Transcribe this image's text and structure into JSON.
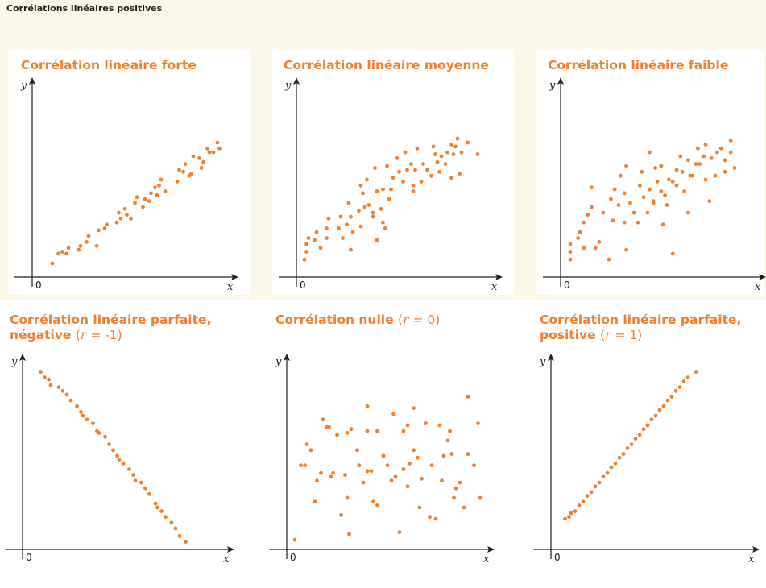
{
  "page": {
    "heading": "Corrélations linéaires positives"
  },
  "colors": {
    "accent": "#f07f2e",
    "axis": "#1d1d1b",
    "top_band": "#fbf8ea",
    "panel_background": "#ffffff"
  },
  "chart_data": [
    {
      "type": "scatter",
      "title": "Corrélation linéaire forte",
      "xlabel": "x",
      "ylabel": "y",
      "origin_label": "0",
      "xlim": [
        0,
        100
      ],
      "ylim": [
        0,
        100
      ],
      "grid": false,
      "points": [
        [
          10,
          7
        ],
        [
          13,
          12
        ],
        [
          15,
          13
        ],
        [
          17,
          12
        ],
        [
          18,
          15
        ],
        [
          23,
          14
        ],
        [
          24,
          16
        ],
        [
          27,
          18
        ],
        [
          28,
          21
        ],
        [
          32,
          16
        ],
        [
          33,
          24
        ],
        [
          36,
          25
        ],
        [
          37,
          27
        ],
        [
          42,
          28
        ],
        [
          43,
          33
        ],
        [
          44,
          30
        ],
        [
          46,
          35
        ],
        [
          47,
          32
        ],
        [
          49,
          30
        ],
        [
          51,
          38
        ],
        [
          52,
          41
        ],
        [
          55,
          36
        ],
        [
          56,
          40
        ],
        [
          58,
          39
        ],
        [
          59,
          43
        ],
        [
          61,
          46
        ],
        [
          62,
          42
        ],
        [
          63,
          47
        ],
        [
          64,
          50
        ],
        [
          66,
          44
        ],
        [
          72,
          49
        ],
        [
          73,
          55
        ],
        [
          75,
          54
        ],
        [
          76,
          58
        ],
        [
          78,
          52
        ],
        [
          79,
          53
        ],
        [
          80,
          62
        ],
        [
          83,
          61
        ],
        [
          84,
          56
        ],
        [
          85,
          59
        ],
        [
          87,
          66
        ],
        [
          88,
          64
        ],
        [
          90,
          64
        ],
        [
          92,
          69
        ],
        [
          93,
          66
        ]
      ]
    },
    {
      "type": "scatter",
      "title": "Corrélation linéaire moyenne",
      "xlabel": "x",
      "ylabel": "y",
      "origin_label": "0",
      "xlim": [
        0,
        100
      ],
      "ylim": [
        0,
        100
      ],
      "grid": false,
      "points": [
        [
          4,
          9
        ],
        [
          5,
          13
        ],
        [
          5,
          17
        ],
        [
          6,
          20
        ],
        [
          9,
          19
        ],
        [
          10,
          23
        ],
        [
          12,
          15
        ],
        [
          15,
          20
        ],
        [
          15,
          25
        ],
        [
          16,
          30
        ],
        [
          21,
          25
        ],
        [
          22,
          31
        ],
        [
          23,
          20
        ],
        [
          25,
          27
        ],
        [
          26,
          38
        ],
        [
          27,
          31
        ],
        [
          27,
          14
        ],
        [
          28,
          23
        ],
        [
          31,
          34
        ],
        [
          32,
          26
        ],
        [
          32,
          47
        ],
        [
          33,
          43
        ],
        [
          34,
          36
        ],
        [
          35,
          50
        ],
        [
          36,
          37
        ],
        [
          38,
          31
        ],
        [
          38,
          33
        ],
        [
          39,
          56
        ],
        [
          40,
          19
        ],
        [
          40,
          44
        ],
        [
          42,
          35
        ],
        [
          43,
          45
        ],
        [
          43,
          28
        ],
        [
          44,
          25
        ],
        [
          45,
          57
        ],
        [
          46,
          40
        ],
        [
          47,
          45
        ],
        [
          48,
          51
        ],
        [
          50,
          61
        ],
        [
          51,
          54
        ],
        [
          53,
          49
        ],
        [
          54,
          64
        ],
        [
          55,
          55
        ],
        [
          57,
          58
        ],
        [
          58,
          47
        ],
        [
          58,
          44
        ],
        [
          59,
          55
        ],
        [
          60,
          66
        ],
        [
          62,
          49
        ],
        [
          63,
          58
        ],
        [
          65,
          55
        ],
        [
          67,
          52
        ],
        [
          68,
          67
        ],
        [
          69,
          63
        ],
        [
          70,
          59
        ],
        [
          71,
          54
        ],
        [
          72,
          62
        ],
        [
          74,
          58
        ],
        [
          75,
          64
        ],
        [
          77,
          51
        ],
        [
          77,
          68
        ],
        [
          78,
          63
        ],
        [
          79,
          67
        ],
        [
          80,
          71
        ],
        [
          81,
          53
        ],
        [
          82,
          64
        ],
        [
          85,
          69
        ],
        [
          90,
          63
        ]
      ]
    },
    {
      "type": "scatter",
      "title": "Corrélation linéaire faible",
      "xlabel": "x",
      "ylabel": "y",
      "origin_label": "0",
      "xlim": [
        0,
        100
      ],
      "ylim": [
        0,
        100
      ],
      "grid": false,
      "points": [
        [
          5,
          13
        ],
        [
          5,
          9
        ],
        [
          5,
          17
        ],
        [
          9,
          20
        ],
        [
          10,
          23
        ],
        [
          12,
          28
        ],
        [
          12,
          15
        ],
        [
          14,
          32
        ],
        [
          16,
          36
        ],
        [
          16,
          46
        ],
        [
          18,
          15
        ],
        [
          20,
          18
        ],
        [
          22,
          33
        ],
        [
          25,
          9
        ],
        [
          26,
          40
        ],
        [
          27,
          29
        ],
        [
          28,
          45
        ],
        [
          30,
          37
        ],
        [
          31,
          52
        ],
        [
          33,
          28
        ],
        [
          33,
          43
        ],
        [
          34,
          14
        ],
        [
          34,
          57
        ],
        [
          36,
          38
        ],
        [
          38,
          33
        ],
        [
          40,
          28
        ],
        [
          41,
          47
        ],
        [
          42,
          54
        ],
        [
          43,
          41
        ],
        [
          45,
          33
        ],
        [
          46,
          45
        ],
        [
          46,
          64
        ],
        [
          48,
          38
        ],
        [
          48,
          39
        ],
        [
          49,
          56
        ],
        [
          50,
          49
        ],
        [
          52,
          44
        ],
        [
          52,
          57
        ],
        [
          53,
          27
        ],
        [
          54,
          42
        ],
        [
          55,
          37
        ],
        [
          56,
          50
        ],
        [
          58,
          12
        ],
        [
          58,
          49
        ],
        [
          60,
          55
        ],
        [
          60,
          47
        ],
        [
          62,
          62
        ],
        [
          63,
          54
        ],
        [
          64,
          44
        ],
        [
          66,
          60
        ],
        [
          66,
          33
        ],
        [
          67,
          52
        ],
        [
          68,
          52
        ],
        [
          70,
          58
        ],
        [
          71,
          66
        ],
        [
          72,
          58
        ],
        [
          74,
          62
        ],
        [
          75,
          68
        ],
        [
          75,
          50
        ],
        [
          77,
          39
        ],
        [
          78,
          61
        ],
        [
          80,
          52
        ],
        [
          81,
          64
        ],
        [
          83,
          66
        ],
        [
          85,
          60
        ],
        [
          85,
          54
        ],
        [
          88,
          70
        ],
        [
          88,
          64
        ],
        [
          90,
          56
        ]
      ]
    },
    {
      "type": "scatter",
      "title": "Corrélation linéaire parfaite,",
      "title_line2": "négative",
      "r_symbol": "r",
      "r_value": "= -1",
      "xlabel": "x",
      "ylabel": "y",
      "origin_label": "0",
      "xlim": [
        0,
        100
      ],
      "ylim": [
        0,
        100
      ],
      "grid": false,
      "points": [
        [
          9,
          93
        ],
        [
          11,
          90
        ],
        [
          13,
          89
        ],
        [
          14,
          86
        ],
        [
          18,
          85
        ],
        [
          20,
          83
        ],
        [
          22,
          81
        ],
        [
          24,
          78
        ],
        [
          27,
          75
        ],
        [
          29,
          72
        ],
        [
          30,
          70
        ],
        [
          32,
          68
        ],
        [
          35,
          66
        ],
        [
          37,
          62
        ],
        [
          38,
          61
        ],
        [
          41,
          59
        ],
        [
          43,
          55
        ],
        [
          45,
          52
        ],
        [
          47,
          49
        ],
        [
          48,
          47
        ],
        [
          50,
          45
        ],
        [
          53,
          42
        ],
        [
          55,
          39
        ],
        [
          56,
          36
        ],
        [
          59,
          35
        ],
        [
          61,
          32
        ],
        [
          63,
          29
        ],
        [
          66,
          24
        ],
        [
          67,
          22
        ],
        [
          69,
          20
        ],
        [
          71,
          17
        ],
        [
          74,
          14
        ],
        [
          76,
          11
        ],
        [
          78,
          7
        ],
        [
          81,
          4
        ]
      ]
    },
    {
      "type": "scatter",
      "title": "Corrélation nulle",
      "r_symbol": "r",
      "r_value": "= 0",
      "xlabel": "x",
      "ylabel": "y",
      "origin_label": "0",
      "xlim": [
        0,
        100
      ],
      "ylim": [
        0,
        100
      ],
      "grid": false,
      "points": [
        [
          4,
          5
        ],
        [
          7,
          44
        ],
        [
          9,
          44
        ],
        [
          10,
          55
        ],
        [
          12,
          52
        ],
        [
          14,
          25
        ],
        [
          15,
          36
        ],
        [
          17,
          40
        ],
        [
          18,
          68
        ],
        [
          20,
          64
        ],
        [
          21,
          64
        ],
        [
          22,
          38
        ],
        [
          23,
          40
        ],
        [
          25,
          60
        ],
        [
          27,
          18
        ],
        [
          29,
          39
        ],
        [
          30,
          27
        ],
        [
          30,
          61
        ],
        [
          31,
          8
        ],
        [
          32,
          63
        ],
        [
          35,
          52
        ],
        [
          36,
          44
        ],
        [
          38,
          35
        ],
        [
          40,
          41
        ],
        [
          40,
          62
        ],
        [
          40,
          75
        ],
        [
          42,
          41
        ],
        [
          43,
          25
        ],
        [
          45,
          23
        ],
        [
          45,
          62
        ],
        [
          48,
          49
        ],
        [
          50,
          44
        ],
        [
          52,
          36
        ],
        [
          53,
          71
        ],
        [
          54,
          38
        ],
        [
          56,
          9
        ],
        [
          58,
          42
        ],
        [
          58,
          62
        ],
        [
          60,
          33
        ],
        [
          60,
          65
        ],
        [
          61,
          45
        ],
        [
          63,
          52
        ],
        [
          63,
          74
        ],
        [
          65,
          48
        ],
        [
          66,
          22
        ],
        [
          67,
          37
        ],
        [
          69,
          66
        ],
        [
          71,
          17
        ],
        [
          72,
          44
        ],
        [
          74,
          16
        ],
        [
          76,
          65
        ],
        [
          77,
          36
        ],
        [
          78,
          49
        ],
        [
          80,
          57
        ],
        [
          81,
          62
        ],
        [
          82,
          50
        ],
        [
          83,
          27
        ],
        [
          84,
          32
        ],
        [
          86,
          35
        ],
        [
          88,
          22
        ],
        [
          90,
          80
        ],
        [
          90,
          50
        ],
        [
          93,
          44
        ],
        [
          95,
          66
        ],
        [
          96,
          27
        ]
      ]
    },
    {
      "type": "scatter",
      "title": "Corrélation linéaire parfaite,",
      "title_line2": "positive",
      "r_symbol": "r",
      "r_value": "= 1",
      "xlabel": "x",
      "ylabel": "y",
      "origin_label": "0",
      "xlim": [
        0,
        100
      ],
      "ylim": [
        0,
        100
      ],
      "grid": false,
      "points": [
        [
          7,
          16
        ],
        [
          9,
          17
        ],
        [
          10,
          19
        ],
        [
          12,
          20
        ],
        [
          14,
          23
        ],
        [
          16,
          25
        ],
        [
          18,
          28
        ],
        [
          20,
          30
        ],
        [
          22,
          33
        ],
        [
          24,
          35
        ],
        [
          26,
          38
        ],
        [
          28,
          40
        ],
        [
          30,
          43
        ],
        [
          32,
          45
        ],
        [
          34,
          48
        ],
        [
          36,
          50
        ],
        [
          38,
          53
        ],
        [
          40,
          55
        ],
        [
          42,
          58
        ],
        [
          44,
          60
        ],
        [
          46,
          63
        ],
        [
          48,
          65
        ],
        [
          50,
          68
        ],
        [
          52,
          70
        ],
        [
          54,
          73
        ],
        [
          56,
          75
        ],
        [
          58,
          78
        ],
        [
          60,
          80
        ],
        [
          62,
          83
        ],
        [
          64,
          85
        ],
        [
          66,
          88
        ],
        [
          68,
          90
        ],
        [
          72,
          93
        ]
      ]
    }
  ]
}
